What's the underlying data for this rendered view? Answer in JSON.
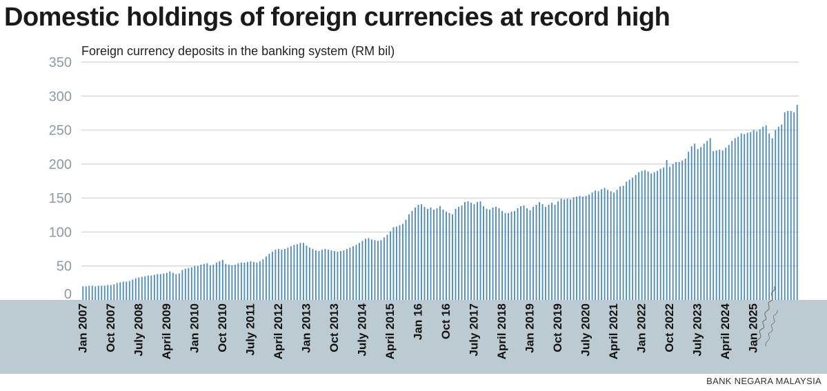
{
  "chart_data": {
    "type": "bar",
    "title": "Domestic holdings of foreign currencies at record high",
    "subtitle": "Foreign currency deposits in the banking system (RM bil)",
    "source": "BANK NEGARA MALAYSIA",
    "ylim": [
      0,
      350
    ],
    "yticks": [
      0,
      50,
      100,
      150,
      200,
      250,
      300,
      350
    ],
    "start_month": "Jan 2007",
    "frequency": "monthly",
    "xtick_labels": [
      {
        "label": "Jan 2007",
        "index": 0
      },
      {
        "label": "Oct 2007",
        "index": 9
      },
      {
        "label": "July 2008",
        "index": 18
      },
      {
        "label": "April 2009",
        "index": 27
      },
      {
        "label": "Jan 2010",
        "index": 36
      },
      {
        "label": "Oct 2010",
        "index": 45
      },
      {
        "label": "July 2011",
        "index": 54
      },
      {
        "label": "April 2012",
        "index": 63
      },
      {
        "label": "Jan 2013",
        "index": 72
      },
      {
        "label": "Oct 2013",
        "index": 81
      },
      {
        "label": "July 2014",
        "index": 90
      },
      {
        "label": "April 2015",
        "index": 99
      },
      {
        "label": "Jan 16",
        "index": 108
      },
      {
        "label": "Oct 16",
        "index": 117
      },
      {
        "label": "July 2017",
        "index": 126
      },
      {
        "label": "April 2018",
        "index": 135
      },
      {
        "label": "Jan 2019",
        "index": 144
      },
      {
        "label": "Oct 2019",
        "index": 153
      },
      {
        "label": "July 2020",
        "index": 162
      },
      {
        "label": "April 2021",
        "index": 171
      },
      {
        "label": "Jan 2022",
        "index": 180
      },
      {
        "label": "Oct 2022",
        "index": 189
      },
      {
        "label": "July 2023",
        "index": 198
      },
      {
        "label": "April 2024",
        "index": 207
      },
      {
        "label": "Jan 2025",
        "index": 216
      }
    ],
    "values": [
      20,
      20,
      21,
      21,
      20,
      21,
      21,
      21,
      22,
      22,
      23,
      25,
      26,
      27,
      27,
      28,
      30,
      32,
      33,
      34,
      35,
      36,
      36,
      37,
      38,
      38,
      39,
      40,
      42,
      40,
      38,
      39,
      44,
      46,
      47,
      48,
      50,
      50,
      52,
      53,
      54,
      51,
      52,
      55,
      57,
      59,
      53,
      52,
      51,
      52,
      54,
      55,
      55,
      56,
      57,
      56,
      55,
      57,
      60,
      64,
      68,
      71,
      74,
      75,
      74,
      75,
      77,
      79,
      81,
      82,
      84,
      84,
      80,
      77,
      75,
      73,
      72,
      74,
      75,
      74,
      73,
      72,
      71,
      72,
      73,
      75,
      77,
      79,
      81,
      84,
      87,
      90,
      91,
      89,
      88,
      87,
      88,
      92,
      96,
      101,
      107,
      108,
      110,
      112,
      118,
      126,
      131,
      136,
      140,
      141,
      137,
      134,
      136,
      133,
      135,
      138,
      133,
      130,
      128,
      126,
      134,
      137,
      139,
      144,
      145,
      143,
      141,
      144,
      145,
      138,
      134,
      133,
      136,
      137,
      135,
      131,
      128,
      128,
      130,
      131,
      135,
      138,
      139,
      135,
      132,
      137,
      140,
      144,
      141,
      137,
      140,
      143,
      140,
      145,
      149,
      148,
      149,
      148,
      151,
      152,
      153,
      152,
      153,
      155,
      158,
      161,
      160,
      163,
      165,
      162,
      160,
      158,
      162,
      167,
      168,
      174,
      177,
      180,
      184,
      188,
      190,
      191,
      189,
      186,
      188,
      190,
      193,
      195,
      206,
      196,
      200,
      203,
      203,
      205,
      208,
      218,
      226,
      230,
      222,
      225,
      230,
      234,
      238,
      219,
      220,
      221,
      220,
      224,
      228,
      234,
      238,
      240,
      245,
      244,
      246,
      247,
      250,
      248,
      251,
      255,
      257,
      245,
      238,
      250,
      255,
      258,
      276,
      278,
      278,
      276,
      287
    ],
    "annotation_signature": "Domestic holdings of foreign currencies at record high"
  }
}
